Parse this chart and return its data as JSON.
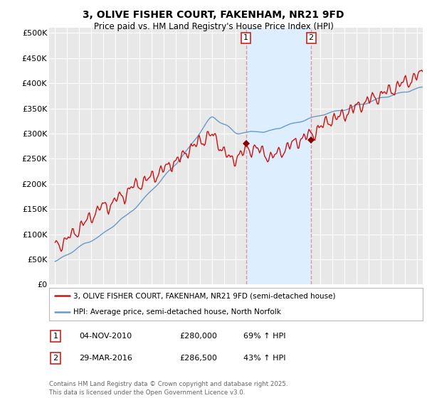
{
  "title": "3, OLIVE FISHER COURT, FAKENHAM, NR21 9FD",
  "subtitle": "Price paid vs. HM Land Registry's House Price Index (HPI)",
  "ylabel_ticks": [
    "£0",
    "£50K",
    "£100K",
    "£150K",
    "£200K",
    "£250K",
    "£300K",
    "£350K",
    "£400K",
    "£450K",
    "£500K"
  ],
  "ytick_values": [
    0,
    50000,
    100000,
    150000,
    200000,
    250000,
    300000,
    350000,
    400000,
    450000,
    500000
  ],
  "ylim": [
    0,
    510000
  ],
  "xlim_start": 1994.5,
  "xlim_end": 2025.5,
  "sale1_x": 2010.84,
  "sale1_y": 280000,
  "sale2_x": 2016.24,
  "sale2_y": 286500,
  "vline1_x": 2010.84,
  "vline2_x": 2016.24,
  "vline_color": "#ee8888",
  "shade_color": "#ddeeff",
  "red_line_color": "#cc1111",
  "blue_line_color": "#6699cc",
  "legend_red_label": "3, OLIVE FISHER COURT, FAKENHAM, NR21 9FD (semi-detached house)",
  "legend_blue_label": "HPI: Average price, semi-detached house, North Norfolk",
  "table_row1": [
    "1",
    "04-NOV-2010",
    "£280,000",
    "69% ↑ HPI"
  ],
  "table_row2": [
    "2",
    "29-MAR-2016",
    "£286,500",
    "43% ↑ HPI"
  ],
  "footer": "Contains HM Land Registry data © Crown copyright and database right 2025.\nThis data is licensed under the Open Government Licence v3.0.",
  "background_color": "#ffffff",
  "plot_bg_color": "#e8e8e8"
}
